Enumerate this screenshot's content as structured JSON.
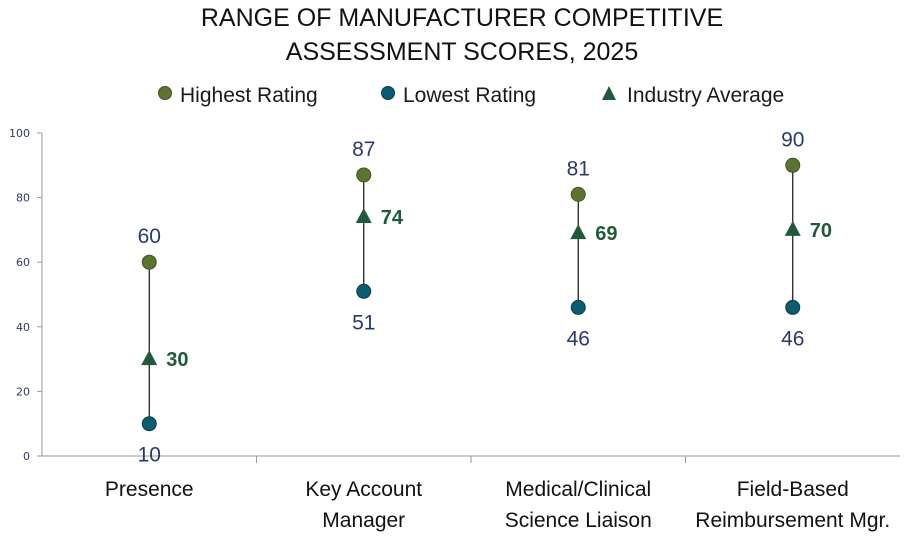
{
  "chart_data": {
    "type": "range",
    "title_lines": [
      "RANGE OF MANUFACTURER COMPETITIVE",
      "ASSESSMENT SCORES, 2025"
    ],
    "ylim": [
      0,
      100
    ],
    "yticks": [
      0,
      20,
      40,
      60,
      80,
      100
    ],
    "grid": false,
    "legend_position": "top",
    "categories": [
      [
        "Presence"
      ],
      [
        "Key Account",
        "Manager"
      ],
      [
        "Medical/Clinical",
        "Science Liaison"
      ],
      [
        "Field-Based",
        "Reimbursement Mgr."
      ]
    ],
    "series": [
      {
        "name": "Highest Rating",
        "marker": "circle",
        "color": "#5c7430",
        "values": [
          60,
          87,
          81,
          90
        ]
      },
      {
        "name": "Lowest Rating",
        "marker": "circle",
        "color": "#0d5b70",
        "values": [
          10,
          51,
          46,
          46
        ]
      },
      {
        "name": "Industry Average",
        "marker": "triangle",
        "color": "#1f5b3a",
        "values": [
          30,
          74,
          69,
          70
        ]
      }
    ]
  }
}
